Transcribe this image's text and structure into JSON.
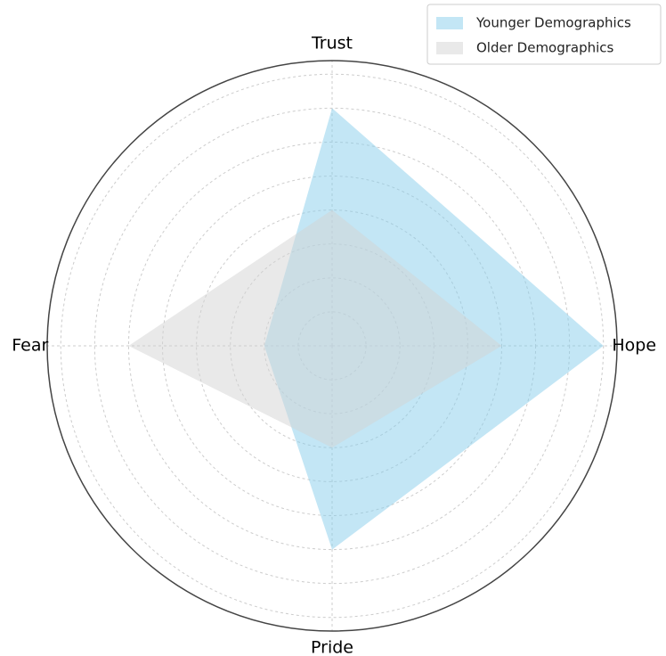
{
  "chart_data": {
    "type": "radar",
    "categories": [
      "Hope",
      "Trust",
      "Fear",
      "Pride"
    ],
    "series": [
      {
        "name": "Younger Demographics",
        "color": "#87ceeb",
        "values": [
          80,
          70,
          20,
          60
        ]
      },
      {
        "name": "Older Demographics",
        "color": "#d3d3d3",
        "values": [
          50,
          40,
          60,
          30
        ]
      }
    ],
    "ylim": [
      0,
      84
    ],
    "yticks": [
      10,
      20,
      30,
      40,
      50,
      60,
      70,
      80
    ],
    "grid": true,
    "legend": "upper right"
  }
}
